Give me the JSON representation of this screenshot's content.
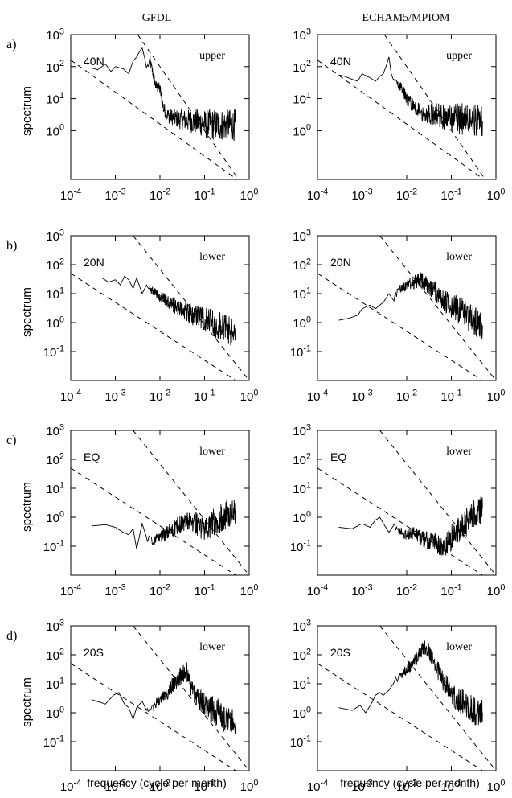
{
  "figure": {
    "column_titles": [
      "GFDL",
      "ECHAM5/MPIOM"
    ],
    "xlabel": "frequency (cycle per month)",
    "ylabel": "spectrum"
  },
  "chart_data": [
    {
      "type": "line",
      "row": "a)",
      "model": "GFDL",
      "lat": "40N",
      "level": "upper",
      "xscale": "log",
      "yscale": "log",
      "xlim": [
        0.0001,
        1
      ],
      "ylim": [
        0.03,
        1000
      ],
      "xticks": [
        0.0001,
        0.001,
        0.01,
        0.1,
        1
      ],
      "yticks": [
        1,
        10,
        100,
        1000
      ],
      "series": [
        {
          "x": [
            0.0003,
            0.0004,
            0.0006,
            0.0008,
            0.001,
            0.0015,
            0.002,
            0.0025,
            0.003,
            0.0035,
            0.004,
            0.0045,
            0.005,
            0.006,
            0.007,
            0.008,
            0.01,
            0.012,
            0.015,
            0.02,
            0.03,
            0.05,
            0.08,
            0.1,
            0.2,
            0.3,
            0.5
          ],
          "y": [
            90,
            80,
            120,
            70,
            100,
            85,
            60,
            150,
            200,
            300,
            380,
            200,
            90,
            150,
            60,
            25,
            20,
            5,
            3,
            2.5,
            2.2,
            2,
            1.8,
            1.6,
            1.5,
            1.5,
            1.5
          ]
        }
      ],
      "guides": [
        {
          "x": [
            0.0001,
            1
          ],
          "y": [
            160,
            0.016
          ]
        },
        {
          "x": [
            0.00316,
            1
          ],
          "y": [
            1000,
            0.01
          ]
        }
      ]
    },
    {
      "type": "line",
      "row": "a)",
      "model": "ECHAM5/MPIOM",
      "lat": "40N",
      "level": "upper",
      "xscale": "log",
      "yscale": "log",
      "xlim": [
        0.0001,
        1
      ],
      "ylim": [
        0.03,
        1000
      ],
      "xticks": [
        0.0001,
        0.001,
        0.01,
        0.1,
        1
      ],
      "yticks": [
        1,
        10,
        100,
        1000
      ],
      "series": [
        {
          "x": [
            0.0003,
            0.0004,
            0.0006,
            0.0008,
            0.001,
            0.0015,
            0.002,
            0.0025,
            0.003,
            0.0035,
            0.004,
            0.0045,
            0.005,
            0.006,
            0.008,
            0.01,
            0.015,
            0.02,
            0.03,
            0.05,
            0.1,
            0.2,
            0.3,
            0.5
          ],
          "y": [
            55,
            50,
            40,
            35,
            60,
            45,
            35,
            50,
            60,
            110,
            200,
            60,
            40,
            30,
            20,
            10,
            5,
            4,
            3.5,
            3,
            2.5,
            2.3,
            2.2,
            2
          ]
        }
      ],
      "guides": [
        {
          "x": [
            0.0001,
            1
          ],
          "y": [
            160,
            0.016
          ]
        },
        {
          "x": [
            0.00316,
            1
          ],
          "y": [
            1000,
            0.01
          ]
        }
      ]
    },
    {
      "type": "line",
      "row": "b)",
      "model": "GFDL",
      "lat": "20N",
      "level": "lower",
      "xscale": "log",
      "yscale": "log",
      "xlim": [
        0.0001,
        1
      ],
      "ylim": [
        0.01,
        1000
      ],
      "xticks": [
        0.0001,
        0.001,
        0.01,
        0.1,
        1
      ],
      "yticks": [
        0.1,
        1,
        10,
        100,
        1000
      ],
      "series": [
        {
          "x": [
            0.0003,
            0.0005,
            0.0007,
            0.001,
            0.0013,
            0.0016,
            0.002,
            0.0025,
            0.003,
            0.004,
            0.005,
            0.006,
            0.008,
            0.01,
            0.015,
            0.02,
            0.03,
            0.05,
            0.08,
            0.1,
            0.2,
            0.3,
            0.5
          ],
          "y": [
            35,
            35,
            25,
            30,
            20,
            40,
            30,
            15,
            35,
            10,
            20,
            15,
            10,
            8,
            5,
            4,
            3,
            2,
            1.5,
            1.2,
            0.8,
            0.6,
            0.4
          ]
        }
      ],
      "guides": [
        {
          "x": [
            0.0001,
            1
          ],
          "y": [
            50,
            0.005
          ]
        },
        {
          "x": [
            0.0025,
            1
          ],
          "y": [
            1000,
            0.01
          ]
        }
      ]
    },
    {
      "type": "line",
      "row": "b)",
      "model": "ECHAM5/MPIOM",
      "lat": "20N",
      "level": "lower",
      "xscale": "log",
      "yscale": "log",
      "xlim": [
        0.0001,
        1
      ],
      "ylim": [
        0.01,
        1000
      ],
      "xticks": [
        0.0001,
        0.001,
        0.01,
        0.1,
        1
      ],
      "yticks": [
        0.1,
        1,
        10,
        100,
        1000
      ],
      "series": [
        {
          "x": [
            0.0003,
            0.0005,
            0.0008,
            0.001,
            0.0015,
            0.002,
            0.003,
            0.004,
            0.005,
            0.007,
            0.01,
            0.015,
            0.02,
            0.03,
            0.05,
            0.08,
            0.1,
            0.2,
            0.3,
            0.5
          ],
          "y": [
            1.2,
            1.4,
            1.8,
            3,
            4,
            3,
            5,
            10,
            6,
            15,
            20,
            25,
            30,
            20,
            10,
            5,
            4,
            2,
            1.2,
            0.8
          ]
        }
      ],
      "guides": [
        {
          "x": [
            0.0001,
            1
          ],
          "y": [
            50,
            0.005
          ]
        },
        {
          "x": [
            0.0025,
            1
          ],
          "y": [
            1000,
            0.01
          ]
        }
      ]
    },
    {
      "type": "line",
      "row": "c)",
      "model": "GFDL",
      "lat": "EQ",
      "level": "lower",
      "xscale": "log",
      "yscale": "log",
      "xlim": [
        0.0001,
        1
      ],
      "ylim": [
        0.01,
        1000
      ],
      "xticks": [
        0.0001,
        0.001,
        0.01,
        0.1,
        1
      ],
      "yticks": [
        0.1,
        1,
        10,
        100,
        1000
      ],
      "series": [
        {
          "x": [
            0.0003,
            0.0006,
            0.001,
            0.0015,
            0.002,
            0.0025,
            0.003,
            0.004,
            0.005,
            0.007,
            0.01,
            0.015,
            0.02,
            0.03,
            0.05,
            0.08,
            0.1,
            0.2,
            0.3,
            0.5
          ],
          "y": [
            0.5,
            0.55,
            0.45,
            0.3,
            0.25,
            0.4,
            0.08,
            0.6,
            0.2,
            0.15,
            0.2,
            0.3,
            0.4,
            0.6,
            0.8,
            0.5,
            0.4,
            0.8,
            1.2,
            1.8
          ]
        }
      ],
      "guides": [
        {
          "x": [
            0.0001,
            1
          ],
          "y": [
            50,
            0.005
          ]
        },
        {
          "x": [
            0.0025,
            1
          ],
          "y": [
            1000,
            0.01
          ]
        }
      ]
    },
    {
      "type": "line",
      "row": "c)",
      "model": "ECHAM5/MPIOM",
      "lat": "EQ",
      "level": "lower",
      "xscale": "log",
      "yscale": "log",
      "xlim": [
        0.0001,
        1
      ],
      "ylim": [
        0.01,
        1000
      ],
      "xticks": [
        0.0001,
        0.001,
        0.01,
        0.1,
        1
      ],
      "yticks": [
        0.1,
        1,
        10,
        100,
        1000
      ],
      "series": [
        {
          "x": [
            0.0003,
            0.0006,
            0.001,
            0.0015,
            0.002,
            0.0025,
            0.003,
            0.004,
            0.005,
            0.007,
            0.01,
            0.015,
            0.02,
            0.03,
            0.05,
            0.07,
            0.1,
            0.15,
            0.2,
            0.3,
            0.5
          ],
          "y": [
            0.45,
            0.4,
            0.6,
            0.45,
            0.8,
            1.0,
            0.6,
            0.3,
            0.5,
            0.3,
            0.25,
            0.3,
            0.2,
            0.15,
            0.12,
            0.1,
            0.2,
            0.35,
            0.6,
            1.2,
            2
          ]
        }
      ],
      "guides": [
        {
          "x": [
            0.0001,
            1
          ],
          "y": [
            50,
            0.005
          ]
        },
        {
          "x": [
            0.0025,
            1
          ],
          "y": [
            1000,
            0.01
          ]
        }
      ]
    },
    {
      "type": "line",
      "row": "d)",
      "model": "GFDL",
      "lat": "20S",
      "level": "lower",
      "xscale": "log",
      "yscale": "log",
      "xlim": [
        0.0001,
        1
      ],
      "ylim": [
        0.01,
        1000
      ],
      "xticks": [
        0.0001,
        0.001,
        0.01,
        0.1,
        1
      ],
      "yticks": [
        0.1,
        1,
        10,
        100,
        1000
      ],
      "series": [
        {
          "x": [
            0.0003,
            0.0006,
            0.0009,
            0.0012,
            0.0016,
            0.002,
            0.0025,
            0.003,
            0.004,
            0.005,
            0.007,
            0.01,
            0.015,
            0.02,
            0.03,
            0.04,
            0.05,
            0.07,
            0.1,
            0.2,
            0.3,
            0.5
          ],
          "y": [
            2.8,
            2,
            4,
            5,
            2,
            1.5,
            0.6,
            1.5,
            2.5,
            1.2,
            1.5,
            3,
            5,
            10,
            20,
            25,
            8,
            3,
            2,
            1,
            0.6,
            0.5
          ]
        }
      ],
      "guides": [
        {
          "x": [
            0.0001,
            1
          ],
          "y": [
            50,
            0.005
          ]
        },
        {
          "x": [
            0.0025,
            1
          ],
          "y": [
            1000,
            0.01
          ]
        }
      ]
    },
    {
      "type": "line",
      "row": "d)",
      "model": "ECHAM5/MPIOM",
      "lat": "20S",
      "level": "lower",
      "xscale": "log",
      "yscale": "log",
      "xlim": [
        0.0001,
        1
      ],
      "ylim": [
        0.01,
        1000
      ],
      "xticks": [
        0.0001,
        0.001,
        0.01,
        0.1,
        1
      ],
      "yticks": [
        0.1,
        1,
        10,
        100,
        1000
      ],
      "series": [
        {
          "x": [
            0.0003,
            0.0006,
            0.0009,
            0.0012,
            0.0016,
            0.002,
            0.0025,
            0.003,
            0.004,
            0.005,
            0.007,
            0.01,
            0.015,
            0.02,
            0.025,
            0.03,
            0.04,
            0.05,
            0.07,
            0.1,
            0.2,
            0.3,
            0.5
          ],
          "y": [
            1.5,
            1.2,
            1.8,
            1,
            2,
            4,
            5,
            4,
            6,
            10,
            20,
            30,
            60,
            120,
            180,
            150,
            60,
            30,
            10,
            5,
            2,
            1.2,
            1
          ]
        }
      ],
      "guides": [
        {
          "x": [
            0.0001,
            1
          ],
          "y": [
            50,
            0.005
          ]
        },
        {
          "x": [
            0.0025,
            1
          ],
          "y": [
            1000,
            0.01
          ]
        }
      ]
    }
  ]
}
